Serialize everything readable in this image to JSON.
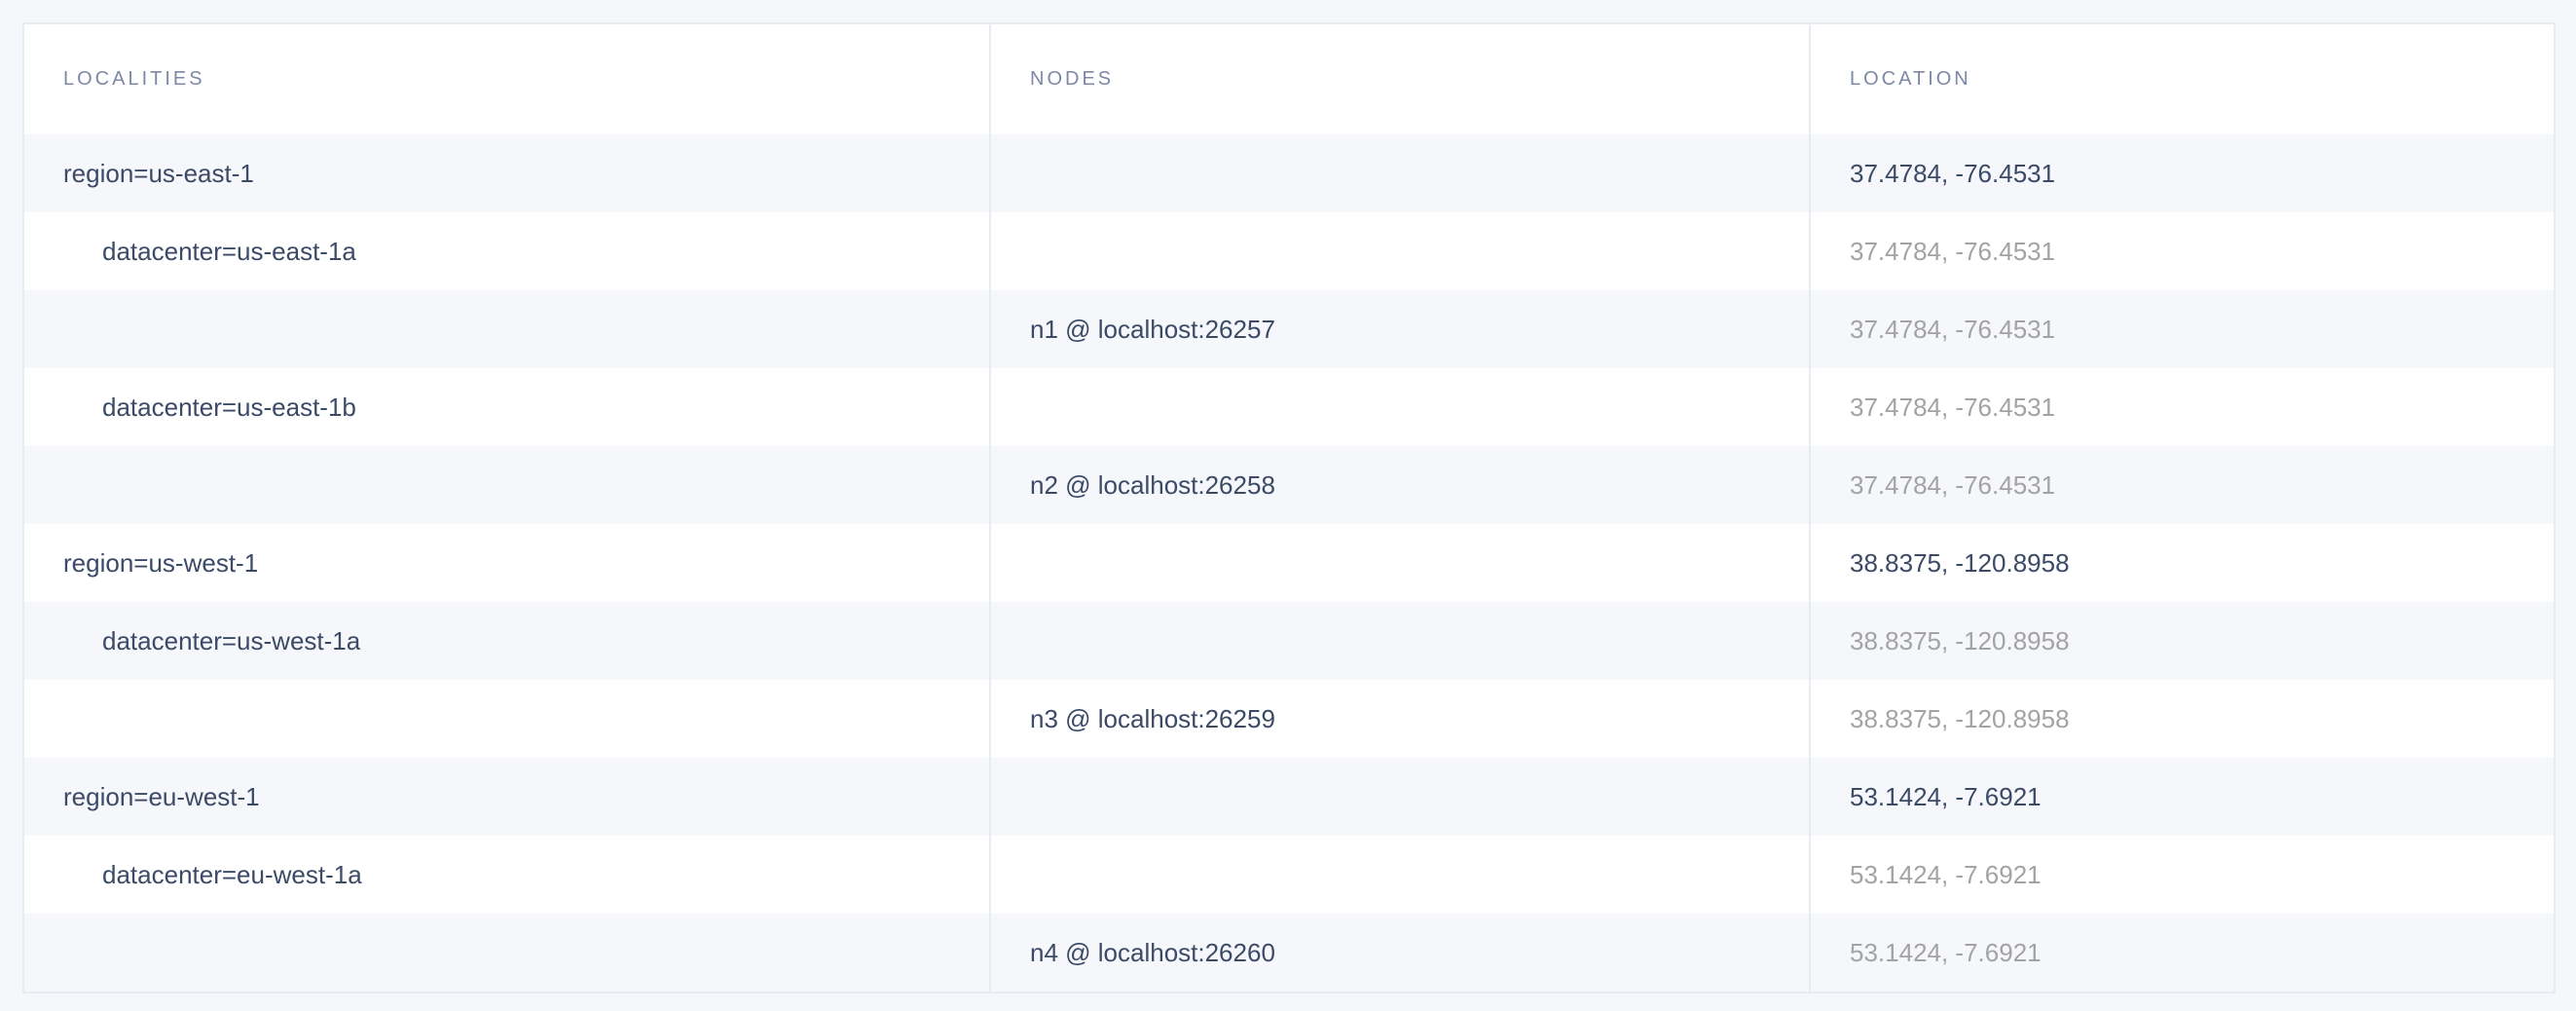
{
  "columns": [
    "LOCALITIES",
    "NODES",
    "LOCATION"
  ],
  "rows": [
    {
      "locality": "region=us-east-1",
      "level": 0,
      "node": "",
      "location": "37.4784, -76.4531",
      "primary": true
    },
    {
      "locality": "datacenter=us-east-1a",
      "level": 1,
      "node": "",
      "location": "37.4784, -76.4531",
      "primary": false
    },
    {
      "locality": "",
      "level": 2,
      "node": "n1 @ localhost:26257",
      "location": "37.4784, -76.4531",
      "primary": false
    },
    {
      "locality": "datacenter=us-east-1b",
      "level": 1,
      "node": "",
      "location": "37.4784, -76.4531",
      "primary": false
    },
    {
      "locality": "",
      "level": 2,
      "node": "n2 @ localhost:26258",
      "location": "37.4784, -76.4531",
      "primary": false
    },
    {
      "locality": "region=us-west-1",
      "level": 0,
      "node": "",
      "location": "38.8375, -120.8958",
      "primary": true
    },
    {
      "locality": "datacenter=us-west-1a",
      "level": 1,
      "node": "",
      "location": "38.8375, -120.8958",
      "primary": false
    },
    {
      "locality": "",
      "level": 2,
      "node": "n3 @ localhost:26259",
      "location": "38.8375, -120.8958",
      "primary": false
    },
    {
      "locality": "region=eu-west-1",
      "level": 0,
      "node": "",
      "location": "53.1424, -7.6921",
      "primary": true
    },
    {
      "locality": "datacenter=eu-west-1a",
      "level": 1,
      "node": "",
      "location": "53.1424, -7.6921",
      "primary": false
    },
    {
      "locality": "",
      "level": 2,
      "node": "n4 @ localhost:26260",
      "location": "53.1424, -7.6921",
      "primary": false
    }
  ],
  "colors": {
    "text": "#3b4a66",
    "muted": "#a3a3a3",
    "header": "#7d88a6",
    "stripe": "#f5f7fa",
    "border": "#e7ecf3"
  }
}
